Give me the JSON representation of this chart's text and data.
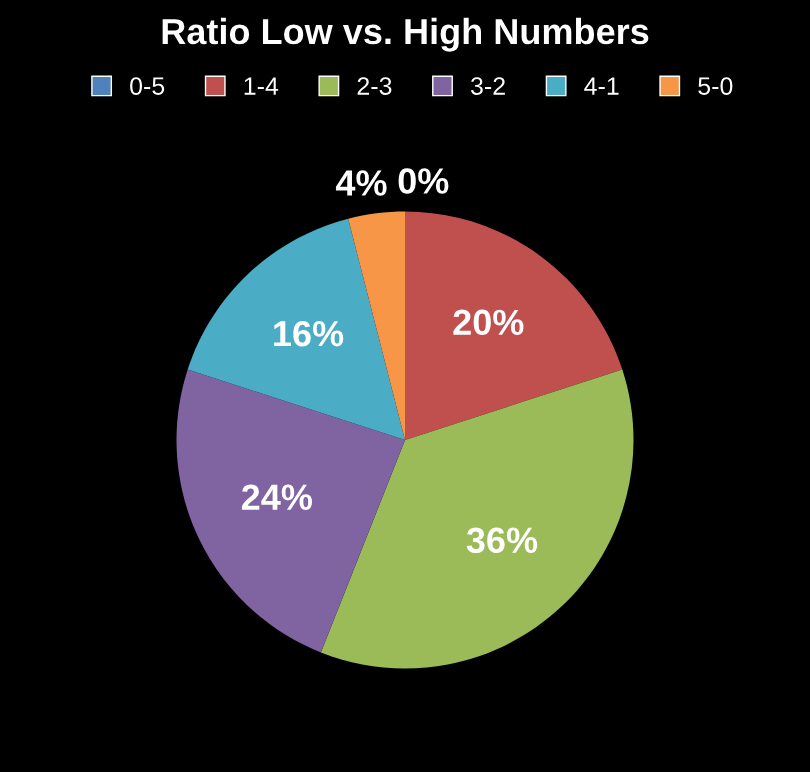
{
  "chart_data": {
    "type": "pie",
    "title": "Ratio Low vs. High Numbers",
    "categories": [
      "0-5",
      "1-4",
      "2-3",
      "3-2",
      "4-1",
      "5-0"
    ],
    "values": [
      0,
      20,
      36,
      24,
      16,
      4
    ],
    "colors": [
      "#4f81bd",
      "#c0504d",
      "#9bbb59",
      "#8064a2",
      "#4bacc6",
      "#f79646"
    ],
    "value_labels": [
      "0%",
      "20%",
      "36%",
      "24%",
      "16%",
      "4%"
    ],
    "legend": "top"
  }
}
